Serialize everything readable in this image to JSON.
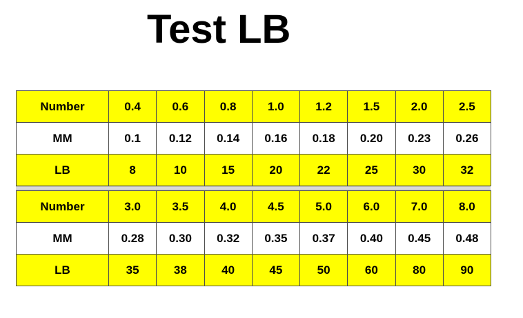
{
  "title": "Test LB",
  "colors": {
    "highlight": "#ffff00",
    "plain": "#ffffff",
    "grid": "#4d4d4d"
  },
  "tables": [
    {
      "rows": [
        {
          "label": "Number",
          "values": [
            "0.4",
            "0.6",
            "0.8",
            "1.0",
            "1.2",
            "1.5",
            "2.0",
            "2.5"
          ]
        },
        {
          "label": "MM",
          "values": [
            "0.1",
            "0.12",
            "0.14",
            "0.16",
            "0.18",
            "0.20",
            "0.23",
            "0.26"
          ]
        },
        {
          "label": "LB",
          "values": [
            "8",
            "10",
            "15",
            "20",
            "22",
            "25",
            "30",
            "32"
          ]
        }
      ]
    },
    {
      "rows": [
        {
          "label": "Number",
          "values": [
            "3.0",
            "3.5",
            "4.0",
            "4.5",
            "5.0",
            "6.0",
            "7.0",
            "8.0"
          ]
        },
        {
          "label": "MM",
          "values": [
            "0.28",
            "0.30",
            "0.32",
            "0.35",
            "0.37",
            "0.40",
            "0.45",
            "0.48"
          ]
        },
        {
          "label": "LB",
          "values": [
            "35",
            "38",
            "40",
            "45",
            "50",
            "60",
            "80",
            "90"
          ]
        }
      ]
    }
  ]
}
